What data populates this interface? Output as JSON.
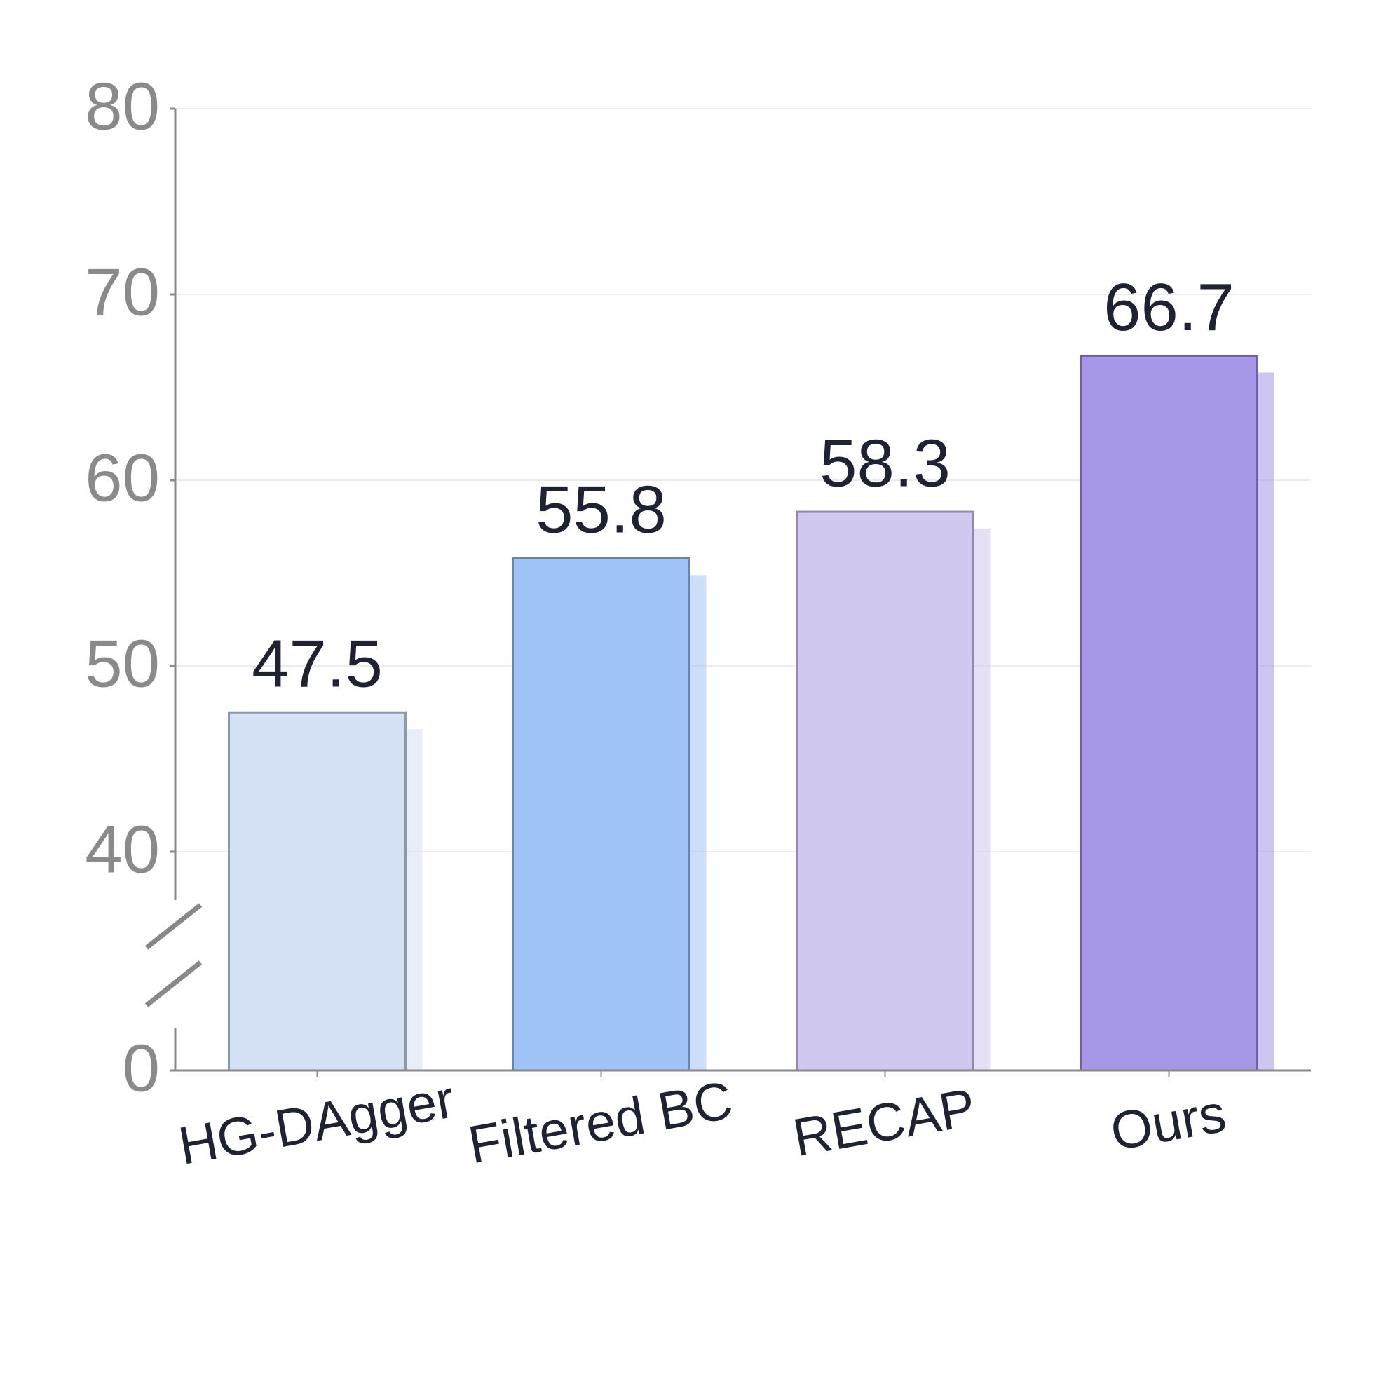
{
  "chart_data": {
    "type": "bar",
    "categories": [
      "HG-DAgger",
      "Filtered BC",
      "RECAP",
      "Ours"
    ],
    "values": [
      47.5,
      55.8,
      58.3,
      66.7
    ],
    "colors": [
      "#d4e0f3",
      "#a0c3f5",
      "#d2c7ef",
      "#a896e6"
    ],
    "ylim": [
      0,
      80
    ],
    "yticks": [
      0,
      40,
      50,
      60,
      70,
      80
    ],
    "broken_axis": true,
    "grid": true
  }
}
